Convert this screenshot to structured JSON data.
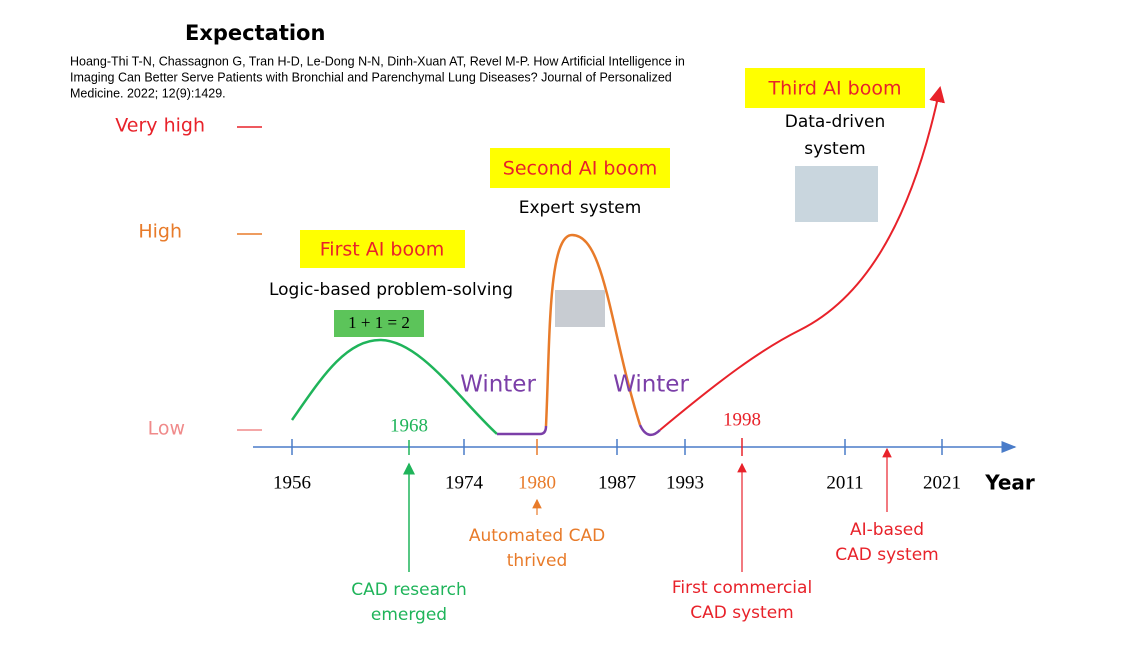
{
  "title": "Expectation",
  "citation": [
    "Hoang-Thi T-N, Chassagnon G, Tran H-D, Le-Dong N-N, Dinh-Xuan AT, Revel M-P. How Artificial Intelligence in",
    "Imaging Can Better Serve Patients with Bronchial and Parenchymal Lung Diseases? Journal of Personalized",
    "Medicine. 2022; 12(9):1429."
  ],
  "levels": [
    "Very high",
    "High",
    "Low"
  ],
  "booms": [
    {
      "label": "First AI boom",
      "description": [
        "Logic-based problem-solving"
      ],
      "formula": "1 + 1 = 2"
    },
    {
      "label": "Second AI boom",
      "description": [
        "Expert system"
      ]
    },
    {
      "label": "Third AI boom",
      "description": [
        "Data-driven",
        "system"
      ]
    }
  ],
  "winters": [
    "Winter",
    "Winter"
  ],
  "axis_label": "Year",
  "years_below": [
    "1956",
    "1974",
    "1980",
    "1987",
    "1993",
    "2011",
    "2021"
  ],
  "years_above": [
    "1968",
    "1998"
  ],
  "annotations": [
    [
      "CAD research",
      "emerged"
    ],
    [
      "Automated CAD",
      "thrived"
    ],
    [
      "First commercial",
      "CAD system"
    ],
    [
      "AI-based",
      "CAD system"
    ]
  ]
}
